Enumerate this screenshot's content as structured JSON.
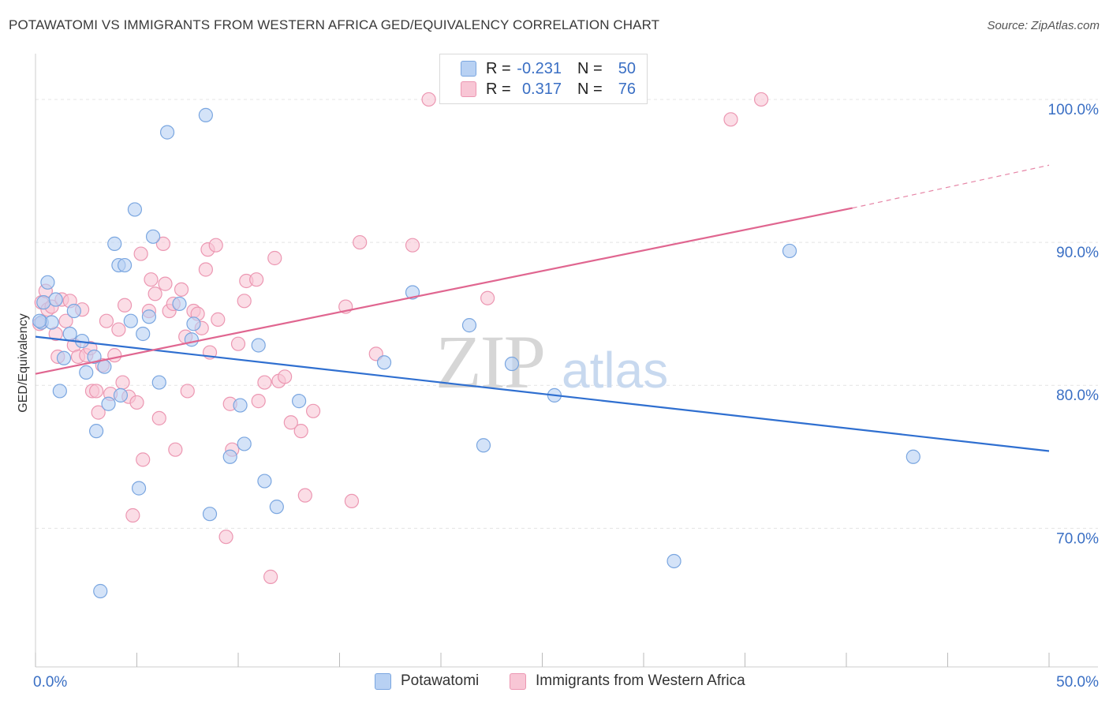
{
  "title": "POTAWATOMI VS IMMIGRANTS FROM WESTERN AFRICA GED/EQUIVALENCY CORRELATION CHART",
  "source": "Source: ZipAtlas.com",
  "watermark": {
    "zip": "ZIP",
    "atlas": "atlas"
  },
  "legend_top": {
    "rows": [
      {
        "r_label": "R =",
        "r_value": "-0.231",
        "n_label": "N =",
        "n_value": "50"
      },
      {
        "r_label": "R =",
        "r_value": "0.317",
        "n_label": "N =",
        "n_value": "76"
      }
    ]
  },
  "legend_bottom": {
    "items": [
      "Potawatomi",
      "Immigrants from Western Africa"
    ]
  },
  "colors": {
    "blue_fill": "#b8d1f3",
    "blue_stroke": "#7aa6e0",
    "blue_line": "#2f6fd0",
    "pink_fill": "#f8c6d5",
    "pink_stroke": "#ec97b2",
    "pink_line": "#e06690",
    "axis_text": "#3a6fc4",
    "grid": "#e4e4e4"
  },
  "chart_data": {
    "type": "scatter",
    "title": "POTAWATOMI VS IMMIGRANTS FROM WESTERN AFRICA GED/EQUIVALENCY CORRELATION CHART",
    "xlabel": "",
    "ylabel": "GED/Equivalency",
    "x_ticks": [
      "0.0%",
      "50.0%"
    ],
    "y_ticks": [
      "70.0%",
      "80.0%",
      "90.0%",
      "100.0%"
    ],
    "xlim": [
      0,
      50
    ],
    "ylim": [
      60.3,
      103.2
    ],
    "grid": true,
    "series": [
      {
        "name": "Potawatomi",
        "color": "#b8d1f3",
        "trend": {
          "x": [
            0,
            50
          ],
          "y": [
            83.4,
            75.4
          ]
        },
        "points": [
          [
            0.3,
            84.4
          ],
          [
            0.4,
            85.8
          ],
          [
            0.6,
            87.2
          ],
          [
            0.8,
            84.4
          ],
          [
            1.0,
            86.0
          ],
          [
            1.2,
            79.6
          ],
          [
            1.4,
            81.9
          ],
          [
            1.7,
            83.6
          ],
          [
            1.9,
            85.2
          ],
          [
            2.3,
            83.1
          ],
          [
            2.5,
            80.9
          ],
          [
            2.9,
            82.0
          ],
          [
            3.0,
            76.8
          ],
          [
            3.4,
            81.3
          ],
          [
            3.6,
            78.7
          ],
          [
            3.9,
            89.9
          ],
          [
            4.1,
            88.4
          ],
          [
            4.2,
            79.3
          ],
          [
            4.4,
            88.4
          ],
          [
            4.7,
            84.5
          ],
          [
            4.9,
            92.3
          ],
          [
            5.1,
            72.8
          ],
          [
            5.3,
            83.6
          ],
          [
            5.6,
            84.8
          ],
          [
            5.8,
            90.4
          ],
          [
            6.1,
            80.2
          ],
          [
            6.5,
            97.7
          ],
          [
            7.1,
            85.7
          ],
          [
            7.7,
            83.2
          ],
          [
            7.8,
            84.3
          ],
          [
            8.4,
            98.9
          ],
          [
            8.6,
            71.0
          ],
          [
            9.6,
            75.0
          ],
          [
            10.1,
            78.6
          ],
          [
            10.3,
            75.9
          ],
          [
            11.0,
            82.8
          ],
          [
            11.3,
            73.3
          ],
          [
            11.9,
            71.5
          ],
          [
            13.0,
            78.9
          ],
          [
            17.2,
            81.6
          ],
          [
            18.6,
            86.5
          ],
          [
            21.4,
            84.2
          ],
          [
            22.1,
            75.8
          ],
          [
            23.5,
            81.5
          ],
          [
            25.6,
            79.3
          ],
          [
            31.5,
            67.7
          ],
          [
            37.2,
            89.4
          ],
          [
            43.3,
            75.0
          ],
          [
            3.2,
            65.6
          ],
          [
            0.2,
            84.5
          ]
        ]
      },
      {
        "name": "Immigrants from Western Africa",
        "color": "#f8c6d5",
        "trend": {
          "x": [
            0,
            40.3
          ],
          "y": [
            80.8,
            92.4
          ]
        },
        "trend_dashed": {
          "x": [
            40.3,
            50
          ],
          "y": [
            92.4,
            95.4
          ]
        },
        "points": [
          [
            0.3,
            85.8
          ],
          [
            0.5,
            86.6
          ],
          [
            0.6,
            85.3
          ],
          [
            0.8,
            85.5
          ],
          [
            1.0,
            83.6
          ],
          [
            1.1,
            82.0
          ],
          [
            1.3,
            86.0
          ],
          [
            1.5,
            84.5
          ],
          [
            1.7,
            85.9
          ],
          [
            1.9,
            82.8
          ],
          [
            2.1,
            82.0
          ],
          [
            2.3,
            85.3
          ],
          [
            2.5,
            82.1
          ],
          [
            2.7,
            82.6
          ],
          [
            2.8,
            79.6
          ],
          [
            3.0,
            79.6
          ],
          [
            3.1,
            78.1
          ],
          [
            3.3,
            81.4
          ],
          [
            3.5,
            84.5
          ],
          [
            3.7,
            79.4
          ],
          [
            3.9,
            82.1
          ],
          [
            4.1,
            83.9
          ],
          [
            4.3,
            80.2
          ],
          [
            4.4,
            85.6
          ],
          [
            4.6,
            79.2
          ],
          [
            4.8,
            70.9
          ],
          [
            5.0,
            78.8
          ],
          [
            5.2,
            89.2
          ],
          [
            5.3,
            74.8
          ],
          [
            5.6,
            85.2
          ],
          [
            5.7,
            87.4
          ],
          [
            5.9,
            86.4
          ],
          [
            6.1,
            77.7
          ],
          [
            6.3,
            89.9
          ],
          [
            6.4,
            87.1
          ],
          [
            6.6,
            85.2
          ],
          [
            6.8,
            85.7
          ],
          [
            6.9,
            75.5
          ],
          [
            7.2,
            86.7
          ],
          [
            7.4,
            83.4
          ],
          [
            7.5,
            79.6
          ],
          [
            7.8,
            85.2
          ],
          [
            8.0,
            85.0
          ],
          [
            8.2,
            84.0
          ],
          [
            8.4,
            88.1
          ],
          [
            8.5,
            89.5
          ],
          [
            8.6,
            82.3
          ],
          [
            8.9,
            89.8
          ],
          [
            9.0,
            84.6
          ],
          [
            9.4,
            69.4
          ],
          [
            9.6,
            78.7
          ],
          [
            9.7,
            75.5
          ],
          [
            10.0,
            82.9
          ],
          [
            10.3,
            85.9
          ],
          [
            10.4,
            87.3
          ],
          [
            10.9,
            87.4
          ],
          [
            11.0,
            78.9
          ],
          [
            11.3,
            80.2
          ],
          [
            11.6,
            66.6
          ],
          [
            11.8,
            88.9
          ],
          [
            12.0,
            80.3
          ],
          [
            12.3,
            80.6
          ],
          [
            12.6,
            77.4
          ],
          [
            13.1,
            76.8
          ],
          [
            13.3,
            72.3
          ],
          [
            13.7,
            78.2
          ],
          [
            15.3,
            85.5
          ],
          [
            15.6,
            71.9
          ],
          [
            16.0,
            90.0
          ],
          [
            16.8,
            82.2
          ],
          [
            18.6,
            89.8
          ],
          [
            19.4,
            100.0
          ],
          [
            22.3,
            86.1
          ],
          [
            34.3,
            98.6
          ],
          [
            35.8,
            100.0
          ],
          [
            0.2,
            84.3
          ]
        ]
      }
    ]
  }
}
